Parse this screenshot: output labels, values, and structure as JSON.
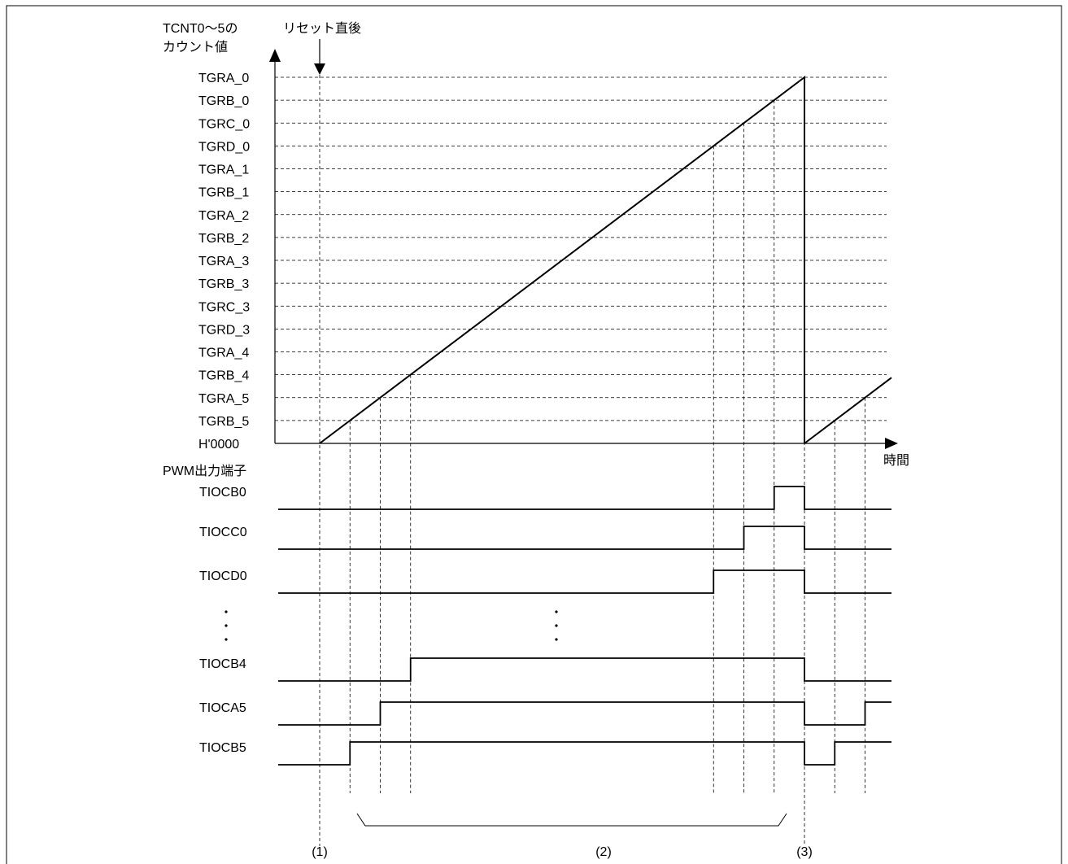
{
  "axis": {
    "y_title_line1": "TCNT0～5の",
    "y_title_line2": "カウント値",
    "reset_label": "リセット直後",
    "x_label": "時間",
    "zero_label": "H'0000"
  },
  "registers": [
    {
      "id": "tgra0",
      "label": "TGRA_0",
      "level": 16
    },
    {
      "id": "tgrb0",
      "label": "TGRB_0",
      "level": 15
    },
    {
      "id": "tgrc0",
      "label": "TGRC_0",
      "level": 14
    },
    {
      "id": "tgrd0",
      "label": "TGRD_0",
      "level": 13
    },
    {
      "id": "tgra1",
      "label": "TGRA_1",
      "level": 12
    },
    {
      "id": "tgrb1",
      "label": "TGRB_1",
      "level": 11
    },
    {
      "id": "tgra2",
      "label": "TGRA_2",
      "level": 10
    },
    {
      "id": "tgrb2",
      "label": "TGRB_2",
      "level": 9
    },
    {
      "id": "tgra3",
      "label": "TGRA_3",
      "level": 8
    },
    {
      "id": "tgrb3",
      "label": "TGRB_3",
      "level": 7
    },
    {
      "id": "tgrc3",
      "label": "TGRC_3",
      "level": 6
    },
    {
      "id": "tgrd3",
      "label": "TGRD_3",
      "level": 5
    },
    {
      "id": "tgra4",
      "label": "TGRA_4",
      "level": 4
    },
    {
      "id": "tgrb4",
      "label": "TGRB_4",
      "level": 3
    },
    {
      "id": "tgra5",
      "label": "TGRA_5",
      "level": 2
    },
    {
      "id": "tgrb5",
      "label": "TGRB_5",
      "level": 1
    }
  ],
  "pwm": {
    "title": "PWM出力端子",
    "outputs": [
      {
        "id": "tiocb0",
        "label": "TIOCB0",
        "rise_level": 15
      },
      {
        "id": "tiocc0",
        "label": "TIOCC0",
        "rise_level": 14
      },
      {
        "id": "tiocd0",
        "label": "TIOCD0",
        "rise_level": 13
      },
      {
        "id": "tiocb4",
        "label": "TIOCB4",
        "rise_level": 3
      },
      {
        "id": "tioca5",
        "label": "TIOCA5",
        "rise_level": 2
      },
      {
        "id": "tiocb5",
        "label": "TIOCB5",
        "rise_level": 1
      }
    ]
  },
  "markers": {
    "m1": "(1)",
    "m2": "(2)",
    "m3": "(3)"
  }
}
